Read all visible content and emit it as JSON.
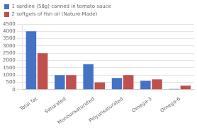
{
  "chart_data": {
    "type": "bar",
    "categories": [
      "Total fat",
      "Saturated",
      "Monounsaturated",
      "Polyunsaturated",
      "Omega-3",
      "Omega-6"
    ],
    "series": [
      {
        "name": "1 sardine (58g) canned in tomato sauce",
        "color": "#4472C4",
        "values": [
          4000,
          1000,
          1750,
          800,
          620,
          50
        ]
      },
      {
        "name": "2 softgels of fish oil (Nature Made)",
        "color": "#C0504D",
        "values": [
          2500,
          1000,
          500,
          1000,
          700,
          280
        ]
      }
    ],
    "ylim": [
      0,
      4500
    ],
    "yticks": [
      0,
      500,
      1000,
      1500,
      2000,
      2500,
      3000,
      3500,
      4000,
      4500
    ],
    "grid": true,
    "legend": "upper left"
  }
}
